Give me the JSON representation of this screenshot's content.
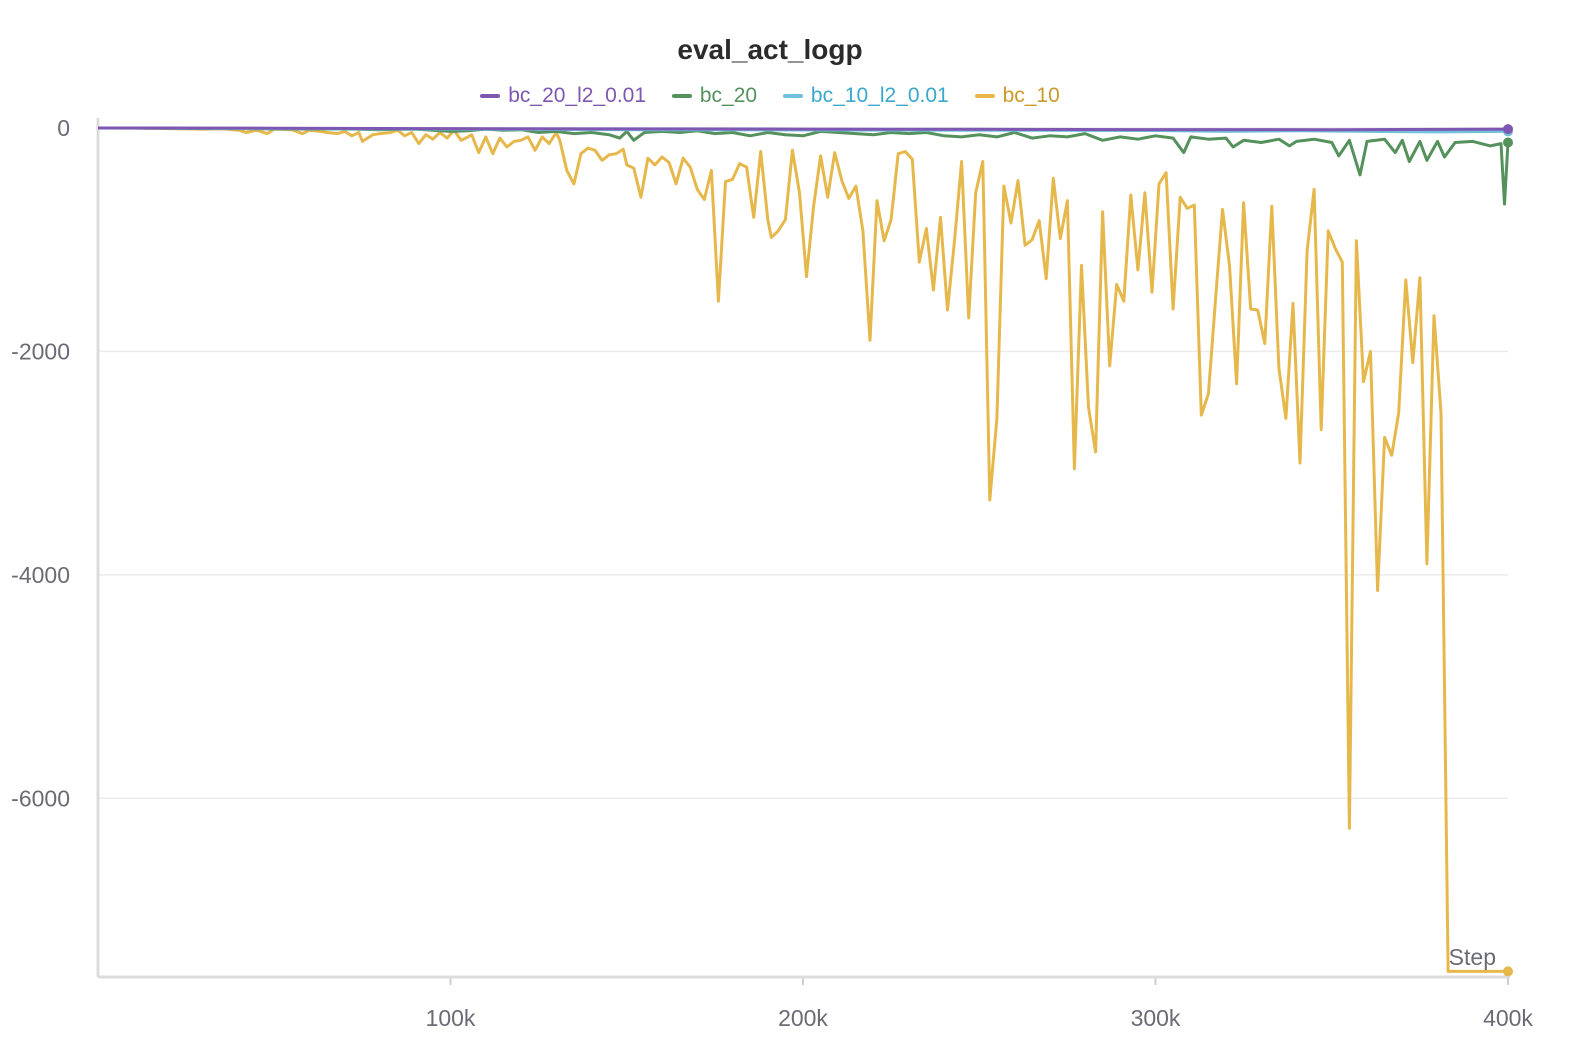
{
  "chart_data": {
    "type": "line",
    "title": "eval_act_logp",
    "xlabel": "Step",
    "ylabel": "",
    "xlim": [
      0,
      400000
    ],
    "ylim": [
      -7600,
      0
    ],
    "x_ticks": [
      {
        "value": 100000,
        "label": "100k"
      },
      {
        "value": 200000,
        "label": "200k"
      },
      {
        "value": 300000,
        "label": "300k"
      },
      {
        "value": 400000,
        "label": "400k"
      }
    ],
    "y_ticks": [
      {
        "value": 0,
        "label": "0"
      },
      {
        "value": -2000,
        "label": "-2000"
      },
      {
        "value": -4000,
        "label": "-4000"
      },
      {
        "value": -6000,
        "label": "-6000"
      }
    ],
    "grid": true,
    "legend_position": "top",
    "series": [
      {
        "name": "bc_20_l2_0.01",
        "color": "#7e57b3",
        "points": [
          [
            0,
            0
          ],
          [
            50000,
            -2
          ],
          [
            100000,
            -5
          ],
          [
            150000,
            -8
          ],
          [
            200000,
            -10
          ],
          [
            250000,
            -12
          ],
          [
            300000,
            -14
          ],
          [
            350000,
            -15
          ],
          [
            400000,
            -10
          ]
        ]
      },
      {
        "name": "bc_20",
        "color": "#55915c",
        "points": [
          [
            0,
            0
          ],
          [
            10000,
            0
          ],
          [
            20000,
            -2
          ],
          [
            30000,
            -5
          ],
          [
            40000,
            -5
          ],
          [
            50000,
            -8
          ],
          [
            60000,
            -10
          ],
          [
            70000,
            -8
          ],
          [
            80000,
            -15
          ],
          [
            90000,
            -10
          ],
          [
            95000,
            -20
          ],
          [
            100000,
            -30
          ],
          [
            105000,
            -25
          ],
          [
            110000,
            -10
          ],
          [
            115000,
            -20
          ],
          [
            120000,
            -15
          ],
          [
            125000,
            -40
          ],
          [
            130000,
            -30
          ],
          [
            135000,
            -50
          ],
          [
            140000,
            -40
          ],
          [
            145000,
            -60
          ],
          [
            148000,
            -90
          ],
          [
            150000,
            -30
          ],
          [
            152000,
            -110
          ],
          [
            155000,
            -40
          ],
          [
            160000,
            -30
          ],
          [
            165000,
            -40
          ],
          [
            170000,
            -25
          ],
          [
            175000,
            -50
          ],
          [
            180000,
            -40
          ],
          [
            185000,
            -70
          ],
          [
            190000,
            -40
          ],
          [
            195000,
            -60
          ],
          [
            200000,
            -70
          ],
          [
            205000,
            -30
          ],
          [
            210000,
            -40
          ],
          [
            215000,
            -50
          ],
          [
            220000,
            -60
          ],
          [
            225000,
            -40
          ],
          [
            230000,
            -50
          ],
          [
            235000,
            -40
          ],
          [
            240000,
            -70
          ],
          [
            245000,
            -80
          ],
          [
            250000,
            -60
          ],
          [
            255000,
            -80
          ],
          [
            260000,
            -40
          ],
          [
            265000,
            -90
          ],
          [
            270000,
            -70
          ],
          [
            275000,
            -80
          ],
          [
            280000,
            -50
          ],
          [
            285000,
            -110
          ],
          [
            290000,
            -80
          ],
          [
            295000,
            -100
          ],
          [
            300000,
            -70
          ],
          [
            305000,
            -90
          ],
          [
            308000,
            -220
          ],
          [
            310000,
            -80
          ],
          [
            315000,
            -100
          ],
          [
            320000,
            -90
          ],
          [
            322000,
            -170
          ],
          [
            325000,
            -110
          ],
          [
            330000,
            -130
          ],
          [
            335000,
            -100
          ],
          [
            338000,
            -160
          ],
          [
            340000,
            -120
          ],
          [
            345000,
            -100
          ],
          [
            350000,
            -130
          ],
          [
            352000,
            -250
          ],
          [
            355000,
            -110
          ],
          [
            358000,
            -420
          ],
          [
            360000,
            -120
          ],
          [
            365000,
            -100
          ],
          [
            368000,
            -220
          ],
          [
            370000,
            -110
          ],
          [
            372000,
            -300
          ],
          [
            375000,
            -120
          ],
          [
            377000,
            -290
          ],
          [
            380000,
            -120
          ],
          [
            382000,
            -260
          ],
          [
            385000,
            -130
          ],
          [
            390000,
            -120
          ],
          [
            395000,
            -160
          ],
          [
            398000,
            -140
          ],
          [
            399000,
            -680
          ],
          [
            400000,
            -130
          ]
        ]
      },
      {
        "name": "bc_10_l2_0.01",
        "color": "#72c0db",
        "points": [
          [
            0,
            0
          ],
          [
            50000,
            -5
          ],
          [
            100000,
            -10
          ],
          [
            150000,
            -15
          ],
          [
            200000,
            -18
          ],
          [
            250000,
            -20
          ],
          [
            300000,
            -22
          ],
          [
            320000,
            -30
          ],
          [
            340000,
            -25
          ],
          [
            360000,
            -30
          ],
          [
            380000,
            -35
          ],
          [
            400000,
            -30
          ]
        ]
      },
      {
        "name": "bc_10",
        "color": "#e6b84c",
        "points": [
          [
            0,
            0
          ],
          [
            10000,
            0
          ],
          [
            20000,
            -5
          ],
          [
            30000,
            -10
          ],
          [
            35000,
            -5
          ],
          [
            40000,
            -20
          ],
          [
            42000,
            -40
          ],
          [
            45000,
            -20
          ],
          [
            48000,
            -50
          ],
          [
            50000,
            -10
          ],
          [
            55000,
            -15
          ],
          [
            58000,
            -50
          ],
          [
            60000,
            -20
          ],
          [
            63000,
            -30
          ],
          [
            65000,
            -40
          ],
          [
            68000,
            -50
          ],
          [
            70000,
            -30
          ],
          [
            72000,
            -70
          ],
          [
            74000,
            -40
          ],
          [
            75000,
            -120
          ],
          [
            78000,
            -60
          ],
          [
            80000,
            -50
          ],
          [
            83000,
            -40
          ],
          [
            85000,
            -20
          ],
          [
            87000,
            -70
          ],
          [
            89000,
            -40
          ],
          [
            91000,
            -140
          ],
          [
            93000,
            -60
          ],
          [
            95000,
            -100
          ],
          [
            97000,
            -40
          ],
          [
            99000,
            -90
          ],
          [
            101000,
            -20
          ],
          [
            103000,
            -110
          ],
          [
            105000,
            -80
          ],
          [
            106000,
            -60
          ],
          [
            108000,
            -220
          ],
          [
            110000,
            -80
          ],
          [
            112000,
            -230
          ],
          [
            114000,
            -90
          ],
          [
            116000,
            -170
          ],
          [
            118000,
            -120
          ],
          [
            120000,
            -110
          ],
          [
            122000,
            -80
          ],
          [
            124000,
            -200
          ],
          [
            126000,
            -80
          ],
          [
            128000,
            -140
          ],
          [
            130000,
            -40
          ],
          [
            131000,
            -110
          ],
          [
            133000,
            -380
          ],
          [
            135000,
            -500
          ],
          [
            137000,
            -230
          ],
          [
            139000,
            -180
          ],
          [
            141000,
            -200
          ],
          [
            143000,
            -290
          ],
          [
            145000,
            -240
          ],
          [
            147000,
            -230
          ],
          [
            149000,
            -190
          ],
          [
            150000,
            -330
          ],
          [
            152000,
            -360
          ],
          [
            154000,
            -620
          ],
          [
            156000,
            -270
          ],
          [
            158000,
            -330
          ],
          [
            160000,
            -260
          ],
          [
            162000,
            -310
          ],
          [
            164000,
            -500
          ],
          [
            166000,
            -270
          ],
          [
            168000,
            -350
          ],
          [
            170000,
            -550
          ],
          [
            172000,
            -640
          ],
          [
            174000,
            -380
          ],
          [
            176000,
            -1550
          ],
          [
            178000,
            -480
          ],
          [
            180000,
            -460
          ],
          [
            182000,
            -320
          ],
          [
            184000,
            -350
          ],
          [
            186000,
            -800
          ],
          [
            188000,
            -210
          ],
          [
            190000,
            -820
          ],
          [
            191000,
            -980
          ],
          [
            193000,
            -920
          ],
          [
            195000,
            -820
          ],
          [
            197000,
            -200
          ],
          [
            199000,
            -580
          ],
          [
            201000,
            -1330
          ],
          [
            203000,
            -700
          ],
          [
            205000,
            -250
          ],
          [
            207000,
            -620
          ],
          [
            209000,
            -220
          ],
          [
            211000,
            -470
          ],
          [
            213000,
            -630
          ],
          [
            215000,
            -520
          ],
          [
            217000,
            -920
          ],
          [
            219000,
            -1900
          ],
          [
            221000,
            -650
          ],
          [
            223000,
            -1010
          ],
          [
            225000,
            -820
          ],
          [
            227000,
            -230
          ],
          [
            229000,
            -210
          ],
          [
            231000,
            -280
          ],
          [
            233000,
            -1200
          ],
          [
            235000,
            -900
          ],
          [
            237000,
            -1450
          ],
          [
            239000,
            -800
          ],
          [
            241000,
            -1630
          ],
          [
            243000,
            -1000
          ],
          [
            245000,
            -300
          ],
          [
            247000,
            -1700
          ],
          [
            249000,
            -580
          ],
          [
            251000,
            -300
          ],
          [
            253000,
            -3330
          ],
          [
            255000,
            -2600
          ],
          [
            257000,
            -520
          ],
          [
            259000,
            -850
          ],
          [
            261000,
            -470
          ],
          [
            263000,
            -1050
          ],
          [
            265000,
            -1000
          ],
          [
            267000,
            -830
          ],
          [
            269000,
            -1350
          ],
          [
            271000,
            -450
          ],
          [
            273000,
            -990
          ],
          [
            275000,
            -650
          ],
          [
            277000,
            -3050
          ],
          [
            279000,
            -1230
          ],
          [
            281000,
            -2500
          ],
          [
            283000,
            -2900
          ],
          [
            285000,
            -750
          ],
          [
            287000,
            -2130
          ],
          [
            289000,
            -1400
          ],
          [
            291000,
            -1550
          ],
          [
            293000,
            -600
          ],
          [
            295000,
            -1270
          ],
          [
            297000,
            -580
          ],
          [
            299000,
            -1470
          ],
          [
            301000,
            -500
          ],
          [
            303000,
            -400
          ],
          [
            305000,
            -1620
          ],
          [
            307000,
            -620
          ],
          [
            309000,
            -720
          ],
          [
            311000,
            -690
          ],
          [
            313000,
            -2570
          ],
          [
            315000,
            -2380
          ],
          [
            317000,
            -1550
          ],
          [
            319000,
            -730
          ],
          [
            321000,
            -1230
          ],
          [
            323000,
            -2290
          ],
          [
            325000,
            -670
          ],
          [
            327000,
            -1620
          ],
          [
            329000,
            -1630
          ],
          [
            331000,
            -1930
          ],
          [
            333000,
            -700
          ],
          [
            335000,
            -2150
          ],
          [
            337000,
            -2600
          ],
          [
            339000,
            -1570
          ],
          [
            341000,
            -3000
          ],
          [
            343000,
            -1100
          ],
          [
            345000,
            -550
          ],
          [
            347000,
            -2700
          ],
          [
            349000,
            -920
          ],
          [
            351000,
            -1080
          ],
          [
            353000,
            -1200
          ],
          [
            355000,
            -6270
          ],
          [
            357000,
            -1010
          ],
          [
            359000,
            -2270
          ],
          [
            361000,
            -2000
          ],
          [
            363000,
            -4140
          ],
          [
            365000,
            -2770
          ],
          [
            367000,
            -2930
          ],
          [
            369000,
            -2550
          ],
          [
            371000,
            -1360
          ],
          [
            373000,
            -2100
          ],
          [
            375000,
            -1340
          ],
          [
            377000,
            -3900
          ],
          [
            379000,
            -1680
          ],
          [
            381000,
            -2550
          ],
          [
            382000,
            -5000
          ],
          [
            383000,
            -7550
          ],
          [
            400000,
            -7550
          ]
        ]
      }
    ]
  }
}
